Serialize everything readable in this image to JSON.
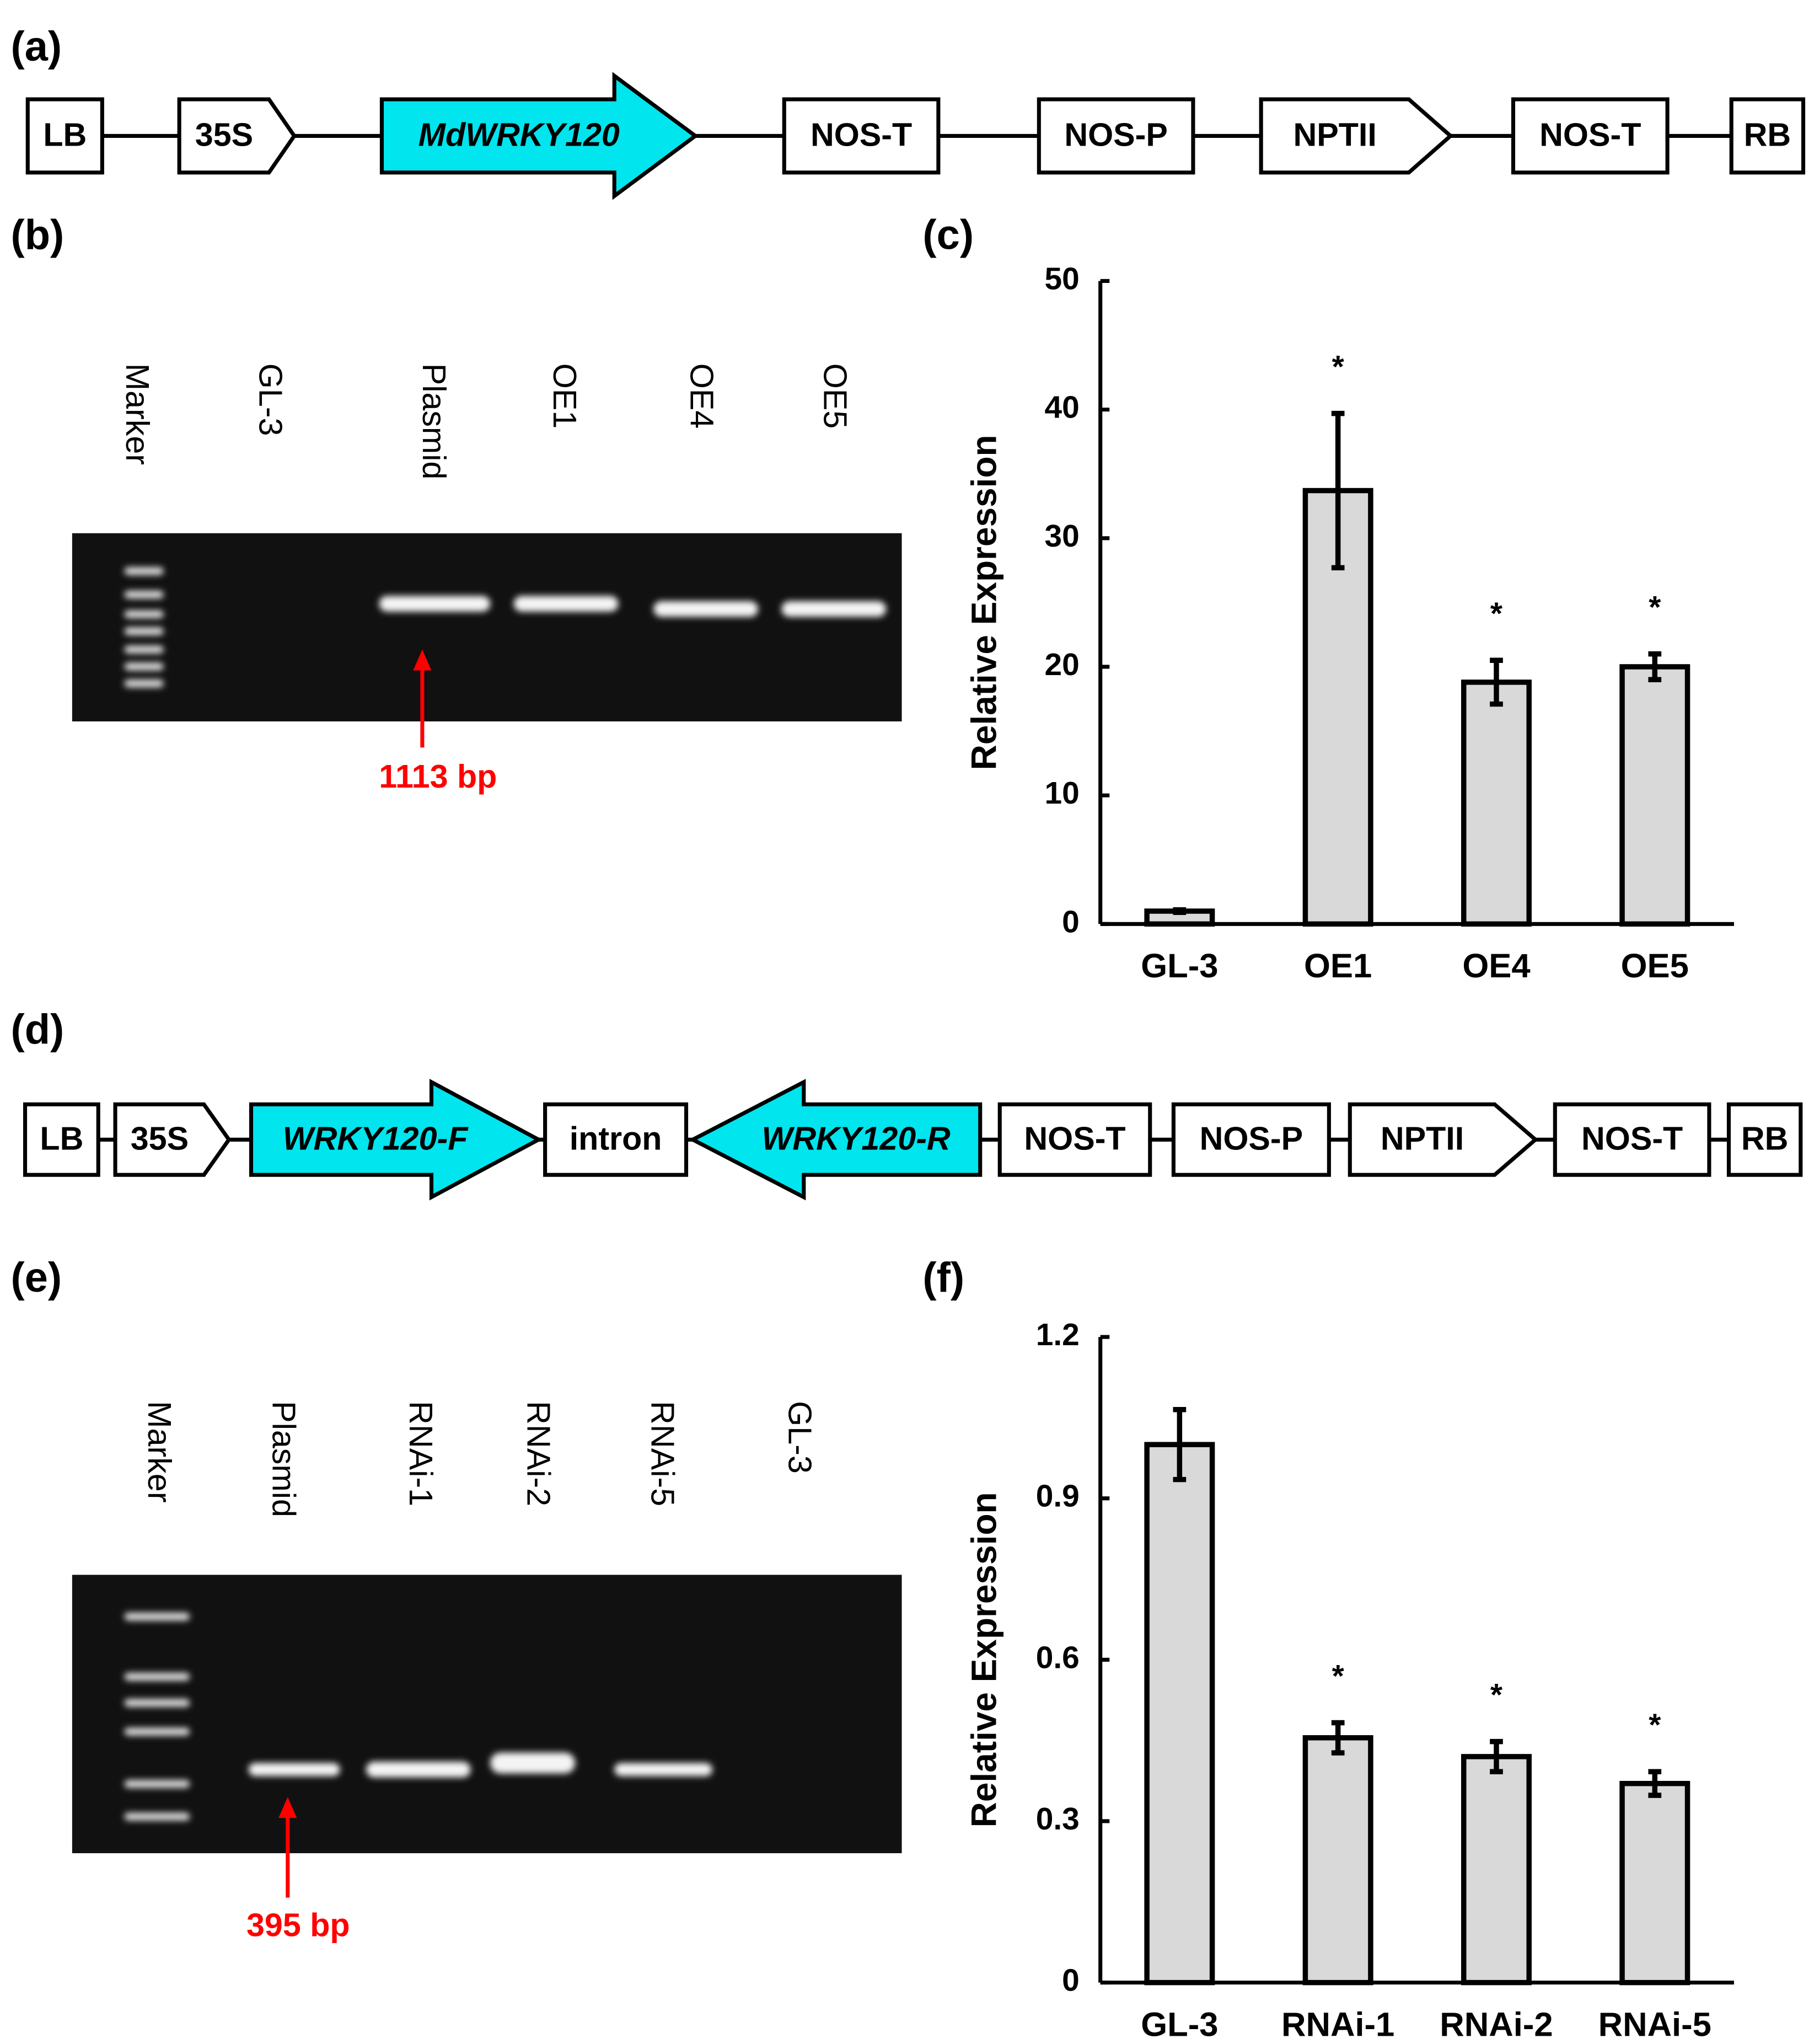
{
  "panels": [
    "(a)",
    "(b)",
    "(c)",
    "(d)",
    "(e)",
    "(f)"
  ],
  "constructs": [
    {
      "parts": [
        "LB",
        "35S",
        "MdWRKY120",
        "NOS-T",
        "NOS-P",
        "NPTII",
        "NOS-T",
        "RB"
      ]
    },
    {
      "parts": [
        "LB",
        "35S",
        "WRKY120-F",
        "intron",
        "WRKY120-R",
        "NOS-T",
        "NOS-P",
        "NPTII",
        "NOS-T",
        "RB"
      ]
    }
  ],
  "gels": [
    {
      "lanes": [
        "Marker",
        "GL-3",
        "Plasmid",
        "OE1",
        "OE4",
        "OE5"
      ],
      "band_label": "1113 bp"
    },
    {
      "lanes": [
        "Marker",
        "Plasmid",
        "RNAi-1",
        "RNAi-2",
        "RNAi-5",
        "GL-3"
      ],
      "band_label": "395 bp"
    }
  ],
  "chart_data": [
    {
      "type": "bar",
      "y_label": "Relative Expression",
      "categories": [
        "GL-3",
        "OE1",
        "OE4",
        "OE5"
      ],
      "values": [
        1,
        33.7,
        18.8,
        20
      ],
      "errors": [
        0.1,
        6,
        1.7,
        1
      ],
      "significance": [
        null,
        "*",
        "*",
        "*"
      ],
      "color": "#d9d9d9",
      "ylim": [
        0,
        50
      ],
      "yticks": [
        0,
        10,
        20,
        30,
        40,
        50
      ]
    },
    {
      "type": "bar",
      "y_label": "Relative Expression",
      "categories": [
        "GL-3",
        "RNAi-1",
        "RNAi-2",
        "RNAi-5"
      ],
      "values": [
        1,
        0.455,
        0.42,
        0.37
      ],
      "errors": [
        0.065,
        0.028,
        0.028,
        0.022
      ],
      "significance": [
        null,
        "*",
        "*",
        "*"
      ],
      "color": "#d9d9d9",
      "ylim": [
        0,
        1.2
      ],
      "yticks": [
        0,
        0.3,
        0.6,
        0.9,
        1.2
      ]
    }
  ]
}
